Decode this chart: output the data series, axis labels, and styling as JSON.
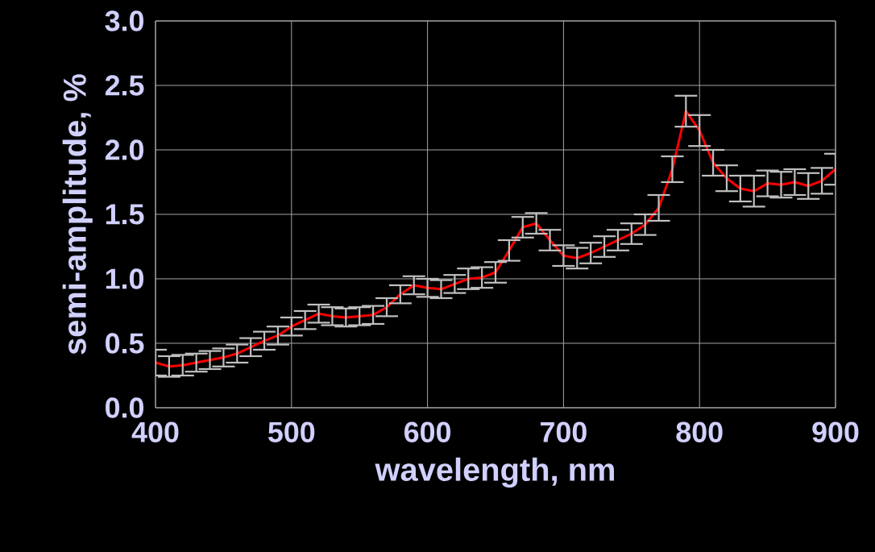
{
  "chart_data": {
    "type": "line",
    "xlabel": "wavelength, nm",
    "ylabel": "semi-amplitude, %",
    "x": [
      400,
      410,
      420,
      430,
      440,
      450,
      460,
      470,
      480,
      490,
      500,
      510,
      520,
      530,
      540,
      550,
      560,
      570,
      580,
      590,
      600,
      610,
      620,
      630,
      640,
      650,
      660,
      670,
      680,
      690,
      700,
      710,
      720,
      730,
      740,
      750,
      760,
      770,
      780,
      790,
      800,
      810,
      820,
      830,
      840,
      850,
      860,
      870,
      880,
      890,
      900
    ],
    "values": [
      0.35,
      0.32,
      0.33,
      0.35,
      0.37,
      0.39,
      0.42,
      0.47,
      0.52,
      0.56,
      0.63,
      0.68,
      0.73,
      0.71,
      0.7,
      0.71,
      0.72,
      0.78,
      0.88,
      0.95,
      0.93,
      0.92,
      0.96,
      1.0,
      1.01,
      1.05,
      1.22,
      1.4,
      1.43,
      1.3,
      1.18,
      1.16,
      1.2,
      1.25,
      1.3,
      1.35,
      1.42,
      1.55,
      1.85,
      2.3,
      2.15,
      1.9,
      1.78,
      1.7,
      1.68,
      1.74,
      1.73,
      1.75,
      1.72,
      1.76,
      1.85
    ],
    "errors": [
      0.1,
      0.08,
      0.08,
      0.07,
      0.07,
      0.07,
      0.07,
      0.07,
      0.07,
      0.07,
      0.07,
      0.07,
      0.07,
      0.07,
      0.07,
      0.07,
      0.07,
      0.07,
      0.07,
      0.07,
      0.07,
      0.07,
      0.07,
      0.08,
      0.08,
      0.08,
      0.08,
      0.08,
      0.08,
      0.08,
      0.08,
      0.08,
      0.08,
      0.08,
      0.08,
      0.08,
      0.08,
      0.1,
      0.1,
      0.12,
      0.12,
      0.1,
      0.1,
      0.1,
      0.12,
      0.1,
      0.1,
      0.1,
      0.1,
      0.1,
      0.12
    ],
    "color": "#ff0000",
    "xlim": [
      400,
      900
    ],
    "ylim": [
      0,
      3
    ],
    "xticks": [
      400,
      500,
      600,
      700,
      800,
      900
    ],
    "yticks": [
      {
        "value": 0,
        "label": "0.0"
      },
      {
        "value": 0.5,
        "label": "0.5"
      },
      {
        "value": 1,
        "label": "1.0"
      },
      {
        "value": 1.5,
        "label": "1.5"
      },
      {
        "value": 2,
        "label": "2.0"
      },
      {
        "value": 2.5,
        "label": "2.5"
      },
      {
        "value": 3,
        "label": "3.0"
      }
    ],
    "grid": true,
    "marker": "none",
    "line_style": "solid"
  }
}
